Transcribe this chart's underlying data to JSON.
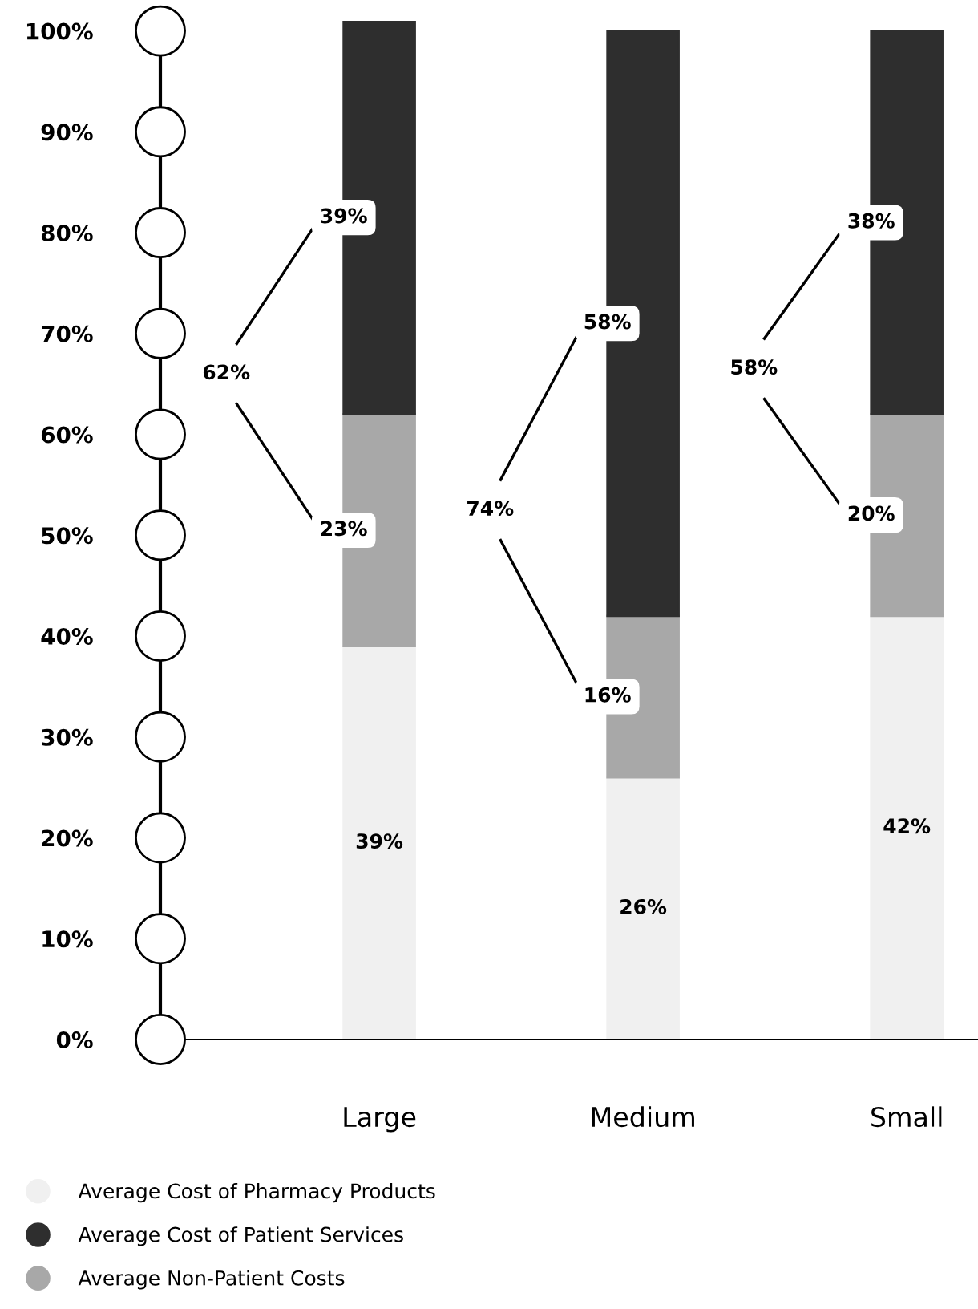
{
  "chart_data": {
    "type": "bar",
    "stacked": true,
    "categories": [
      "Large",
      "Medium",
      "Small"
    ],
    "series": [
      {
        "name": "Average Cost of Pharmacy Products",
        "color": "#f0f0f0",
        "values": [
          39,
          26,
          42
        ],
        "value_labels": [
          "39%",
          "26%",
          "42%"
        ]
      },
      {
        "name": "Average Non-Patient Costs",
        "color": "#a8a8a8",
        "values": [
          23,
          16,
          20
        ],
        "value_labels": [
          "23%",
          "16%",
          "20%"
        ]
      },
      {
        "name": "Average Cost of Patient Services",
        "color": "#2e2e2e",
        "values": [
          39,
          58,
          38
        ],
        "value_labels": [
          "39%",
          "58%",
          "38%"
        ]
      }
    ],
    "annotations": [
      "62%",
      "74%",
      "58%"
    ],
    "ylim": [
      0,
      101
    ],
    "yticks": [
      {
        "value": 0,
        "label": "0%"
      },
      {
        "value": 10,
        "label": "10%"
      },
      {
        "value": 20,
        "label": "20%"
      },
      {
        "value": 30,
        "label": "30%"
      },
      {
        "value": 40,
        "label": "40%"
      },
      {
        "value": 50,
        "label": "50%"
      },
      {
        "value": 60,
        "label": "60%"
      },
      {
        "value": 70,
        "label": "70%"
      },
      {
        "value": 80,
        "label": "80%"
      },
      {
        "value": 90,
        "label": "90%"
      },
      {
        "value": 100,
        "label": "100%"
      }
    ],
    "grid": false,
    "legend": "bottom"
  }
}
